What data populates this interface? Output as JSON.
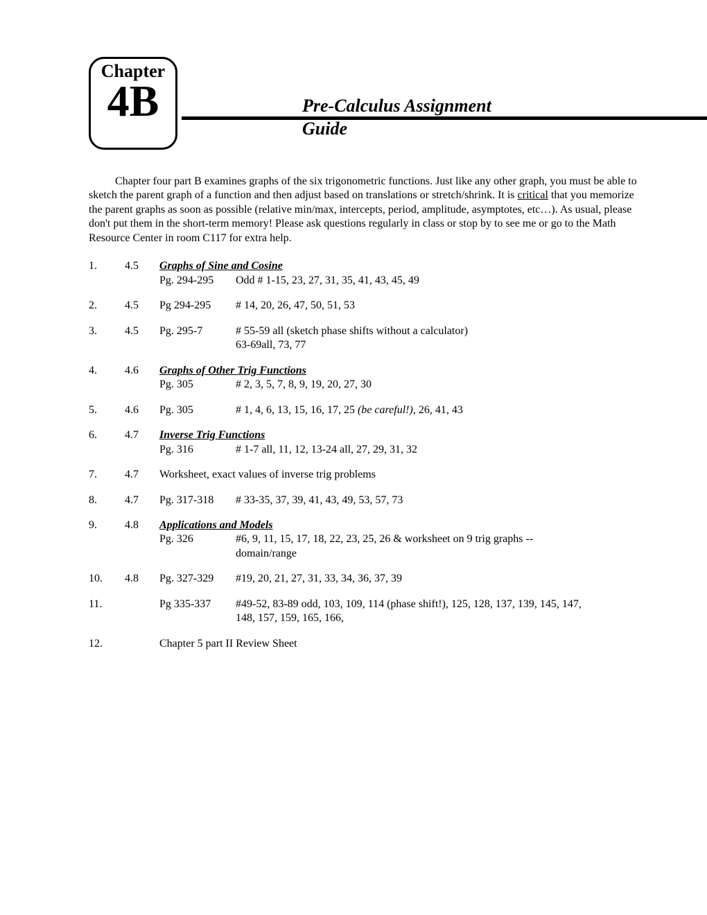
{
  "chapter": {
    "label": "Chapter",
    "code": "4B"
  },
  "title": {
    "line1": "Pre-Calculus Assignment",
    "line2": "Guide"
  },
  "intro": "Chapter four part B examines graphs of the six trigonometric functions.  Just like any other graph, you must be able to sketch the parent graph of a function and then adjust based on translations or stretch/shrink.  It is ",
  "intro_critical": "critical",
  "intro2": " that you memorize the parent graphs as soon as possible (relative min/max, intercepts, period, amplitude, asymptotes, etc…).  As usual, please don't put them in the short-term memory!  Please ask questions regularly in class or stop by to see me or go to the Math Resource Center in room C117 for extra help.",
  "rows": {
    "1": {
      "num": "1.",
      "sec": "4.5",
      "title": "Graphs of Sine and Cosine",
      "pg": "Pg. 294-295",
      "desc": "Odd # 1-15, 23, 27, 31, 35, 41, 43, 45, 49"
    },
    "2": {
      "num": "2.",
      "sec": "4.5",
      "pg": "Pg 294-295",
      "desc": "# 14, 20, 26, 47, 50, 51, 53"
    },
    "3": {
      "num": "3.",
      "sec": "4.5",
      "pg": "Pg. 295-7",
      "desc1": "# 55-59 all (sketch phase shifts without a calculator)",
      "desc2": "63-69all, 73, 77"
    },
    "4": {
      "num": "4.",
      "sec": "4.6",
      "title": "Graphs of Other Trig Functions",
      "pg": "Pg. 305",
      "desc": "# 2, 3, 5, 7, 8, 9, 19, 20, 27, 30"
    },
    "5": {
      "num": "5.",
      "sec": "4.6",
      "pg": "Pg. 305",
      "desc_a": "# 1, 4, 6, 13, 15, 16, 17, 25 ",
      "desc_i": "(be careful!)",
      "desc_b": ", 26, 41, 43"
    },
    "6": {
      "num": "6.",
      "sec": "4.7",
      "title": "Inverse Trig Functions",
      "pg": "Pg. 316",
      "desc": "# 1-7 all, 11, 12, 13-24 all, 27, 29, 31, 32"
    },
    "7": {
      "num": "7.",
      "sec": "4.7",
      "desc": "Worksheet, exact values of inverse trig problems"
    },
    "8": {
      "num": "8.",
      "sec": "4.7",
      "pg": "Pg. 317-318",
      "desc": "# 33-35, 37, 39, 41, 43, 49, 53, 57, 73"
    },
    "9": {
      "num": "9.",
      "sec": "4.8",
      "title": "Applications and Models",
      "pg": "Pg. 326",
      "desc1": "#6, 9, 11, 15, 17, 18, 22, 23, 25, 26 & worksheet on 9 trig graphs --",
      "desc2": "domain/range"
    },
    "10": {
      "num": "10.",
      "sec": "4.8",
      "pg": "Pg. 327-329",
      "desc": "#19, 20, 21, 27, 31, 33, 34, 36, 37, 39"
    },
    "11": {
      "num": "11.",
      "sec": "",
      "pg": "Pg 335-337",
      "desc1": "#49-52, 83-89 odd, 103, 109, 114 (phase shift!), 125, 128, 137, 139, 145, 147,",
      "desc2": "148, 157, 159, 165, 166,"
    },
    "12": {
      "num": "12.",
      "sec": "",
      "desc": "Chapter 5 part II Review Sheet"
    }
  }
}
